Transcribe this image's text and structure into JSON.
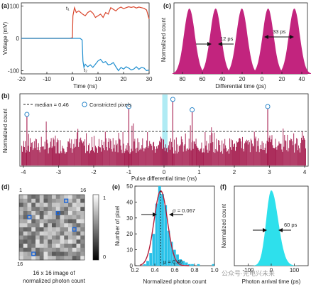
{
  "chart_data": [
    {
      "panel": "(a)",
      "type": "line",
      "xlabel": "Time (ns)",
      "ylabel": "Voltage (mV)",
      "xlim": [
        -20,
        30
      ],
      "ylim": [
        -110,
        110
      ],
      "xticks": [
        "-20",
        "-10",
        "0",
        "10",
        "20",
        "30"
      ],
      "yticks": [
        "100",
        "0",
        "-100"
      ],
      "annotations": [
        "t₁",
        "t₂"
      ],
      "series": [
        {
          "color": "#d9452b",
          "points": [
            [
              -20,
              0
            ],
            [
              -1,
              0
            ],
            [
              0,
              2
            ],
            [
              0.2,
              70
            ],
            [
              0.8,
              95
            ],
            [
              1.5,
              80
            ],
            [
              2.5,
              85
            ],
            [
              4,
              75
            ],
            [
              5,
              70
            ],
            [
              6,
              80
            ],
            [
              7,
              85
            ],
            [
              8,
              78
            ],
            [
              9,
              65
            ],
            [
              10,
              70
            ],
            [
              11,
              75
            ],
            [
              12,
              65
            ],
            [
              13,
              80
            ],
            [
              14,
              75
            ],
            [
              15,
              95
            ],
            [
              16,
              90
            ],
            [
              17,
              85
            ],
            [
              18,
              93
            ],
            [
              19,
              97
            ],
            [
              20,
              92
            ],
            [
              21,
              95
            ],
            [
              22,
              98
            ],
            [
              23,
              96
            ],
            [
              24,
              98
            ],
            [
              25,
              94
            ],
            [
              26,
              97
            ],
            [
              27,
              95
            ],
            [
              28,
              93
            ],
            [
              29,
              88
            ],
            [
              30,
              60
            ]
          ]
        },
        {
          "color": "#1f8ecf",
          "points": [
            [
              -20,
              0
            ],
            [
              3,
              0
            ],
            [
              3.8,
              -5
            ],
            [
              4.1,
              -70
            ],
            [
              4.5,
              -90
            ],
            [
              5,
              -80
            ],
            [
              6,
              -88
            ],
            [
              7,
              -82
            ],
            [
              8,
              -90
            ],
            [
              9,
              -80
            ],
            [
              10,
              -70
            ],
            [
              11,
              -65
            ],
            [
              12,
              -75
            ],
            [
              13,
              -72
            ],
            [
              14,
              -82
            ],
            [
              15,
              -80
            ],
            [
              16,
              -75
            ],
            [
              17,
              -88
            ],
            [
              18,
              -100
            ],
            [
              19,
              -90
            ],
            [
              20,
              -95
            ],
            [
              21,
              -88
            ],
            [
              22,
              -92
            ],
            [
              23,
              -98
            ],
            [
              24,
              -95
            ],
            [
              25,
              -88
            ],
            [
              26,
              -96
            ],
            [
              27,
              -90
            ],
            [
              28,
              -92
            ],
            [
              29,
              -100
            ],
            [
              30,
              -98
            ]
          ]
        }
      ]
    },
    {
      "panel": "(c)",
      "type": "area",
      "xlabel": "Differential time (ps)",
      "ylabel": "Normalized count",
      "xticks": [
        "80",
        "60",
        "40",
        "20",
        "0",
        "20",
        "40"
      ],
      "peak_centers_ps": [
        -75,
        -41,
        -7,
        27,
        61
      ],
      "peak_sigma_ps": 7,
      "color": "#c2247e",
      "annotations": [
        "12 ps",
        "33 ps"
      ]
    },
    {
      "panel": "(b)",
      "type": "bar",
      "xlabel": "Pulse differential time (ns)",
      "ylabel": "Normalized count",
      "xlim": [
        -4.1,
        4.1
      ],
      "xticks": [
        "-4",
        "-3",
        "-2",
        "-1",
        "0",
        "1",
        "2",
        "3",
        "4"
      ],
      "median": 0.46,
      "legend": [
        "median = 0.46",
        "Constricted pixels"
      ],
      "color": "#a3174a",
      "constricted_pixels_ns": [
        -3.9,
        -1.0,
        0.25,
        0.8,
        2.95
      ],
      "highlight_band_ns": [
        -0.05,
        0.1
      ]
    },
    {
      "panel": "(d)",
      "type": "heatmap",
      "grid": 16,
      "corner_labels": [
        "1",
        "16",
        "16"
      ],
      "colorbar_ticks": [
        "1",
        "0"
      ],
      "caption": [
        "16 x 16 image of",
        "normalized photon count"
      ],
      "highlighted_cells": [
        [
          5,
          2
        ],
        [
          14,
          3
        ],
        [
          4,
          9
        ],
        [
          1,
          11
        ],
        [
          8,
          13
        ]
      ]
    },
    {
      "panel": "(e)",
      "type": "bar",
      "xlabel": "Normalized photon count",
      "ylabel": "Number of pixel",
      "xlim": [
        0.2,
        1.0
      ],
      "ylim": [
        0,
        50
      ],
      "xticks": [
        "0.2",
        "0.4",
        "0.6",
        "0.8",
        "1.0"
      ],
      "yticks": [
        "0",
        "10",
        "20",
        "30",
        "40",
        "50"
      ],
      "bins": [
        0.3,
        0.33,
        0.36,
        0.39,
        0.42,
        0.45,
        0.48,
        0.51,
        0.54,
        0.57,
        0.6,
        0.63,
        0.66,
        0.69,
        0.72,
        0.75,
        0.78,
        0.81,
        0.84,
        0.87,
        0.9,
        0.93,
        0.96,
        0.99
      ],
      "counts": [
        1,
        3,
        8,
        20,
        39,
        56,
        45,
        38,
        22,
        15,
        10,
        7,
        4,
        3,
        2,
        1,
        1,
        0,
        1,
        0,
        0,
        0,
        0,
        1
      ],
      "fit_mu": 0.46,
      "fit_sigma": 0.067,
      "annotations": [
        "σ = 0.067",
        "μ = 0.46"
      ]
    },
    {
      "panel": "(f)",
      "type": "area",
      "xlabel": "Photon arrival time (ps)",
      "ylabel": "Normalized count",
      "xticks": [
        "-100",
        "0",
        "100"
      ],
      "color": "#2ee0ec",
      "annotations": [
        "60 ps"
      ]
    }
  ],
  "watermark": "公众号·光电兴未来"
}
